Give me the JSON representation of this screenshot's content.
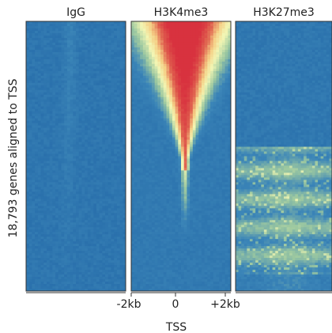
{
  "chart_data": {
    "type": "heatmap",
    "panels": [
      {
        "title": "IgG",
        "pattern": "flat"
      },
      {
        "title": "H3K4me3",
        "pattern": "v-peak"
      },
      {
        "title": "H3K27me3",
        "pattern": "lower-enriched"
      }
    ],
    "ylabel": "18,793 genes aligned to TSS",
    "xlabel": "TSS",
    "x_ticks": [
      "-2kb",
      "0",
      "+2kb"
    ],
    "x_range_kb": [
      -2,
      2
    ],
    "colormap": [
      "#2267a7",
      "#3c86b8",
      "#9cc8a0",
      "#f2f6b4",
      "#f5cf85",
      "#e06450",
      "#d8323f"
    ],
    "colorscale_range": [
      0,
      1
    ]
  }
}
